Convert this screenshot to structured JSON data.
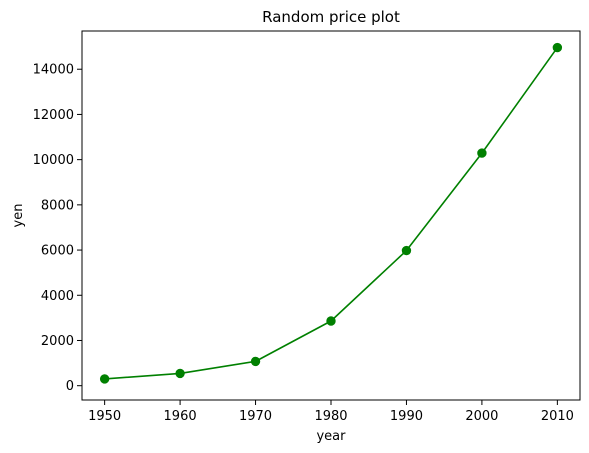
{
  "chart_data": {
    "type": "line",
    "title": "Random price plot",
    "xlabel": "year",
    "ylabel": "yen",
    "x": [
      1950,
      1960,
      1970,
      1980,
      1990,
      2000,
      2010
    ],
    "series": [
      {
        "values": [
          300,
          543,
          1075,
          2862,
          5979,
          10289,
          14958
        ],
        "color": "#008000",
        "marker": "circle"
      }
    ],
    "xlim": [
      1947,
      2013
    ],
    "ylim": [
      -633,
      15691
    ],
    "xticks": [
      1950,
      1960,
      1970,
      1980,
      1990,
      2000,
      2010
    ],
    "yticks": [
      0,
      2000,
      4000,
      6000,
      8000,
      10000,
      12000,
      14000
    ],
    "grid": false,
    "legend": "none"
  }
}
